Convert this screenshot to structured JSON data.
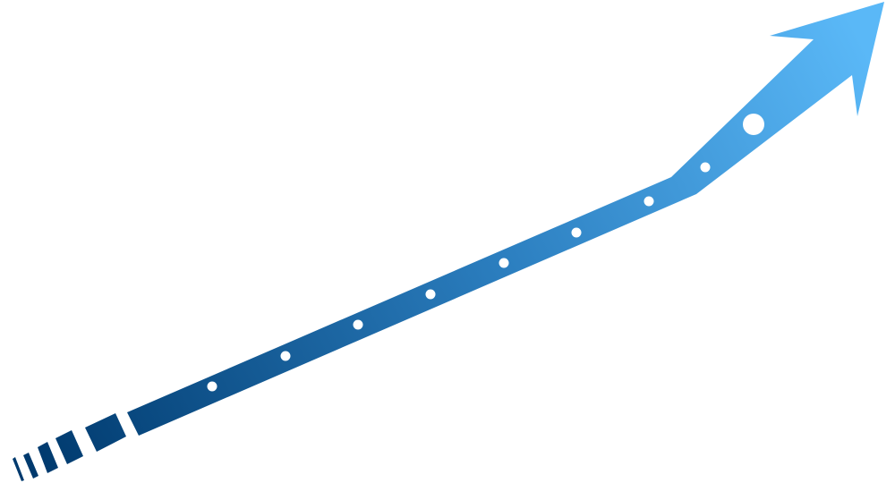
{
  "graphic": {
    "icon": "growth-arrow-icon",
    "colors": {
      "start": "#003A6E",
      "end": "#5AB8F7",
      "dots": "#FFFFFF",
      "background": "#FFFFFF"
    },
    "dot_count": 8,
    "tail_stripe_count": 6
  }
}
